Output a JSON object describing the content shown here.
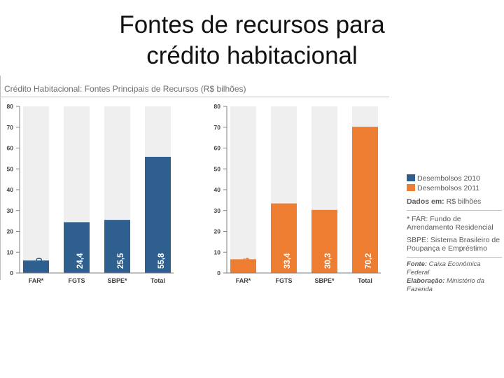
{
  "slide": {
    "title_line1": "Fontes de recursos para",
    "title_line2": "crédito habitacional"
  },
  "chart_data": [
    {
      "type": "bar",
      "title": "Crédito Habitacional: Fontes Principais de Recursos (R$ bilhões)",
      "series_name": "Desembolsos 2010",
      "color": "#2e5f8e",
      "categories": [
        "FAR*",
        "FGTS",
        "SBPE*",
        "Total"
      ],
      "values": [
        6.0,
        24.4,
        25.5,
        55.8
      ],
      "value_labels": [
        "6,0",
        "24,4",
        "25,5",
        "55,8"
      ],
      "ylim": [
        0,
        80
      ],
      "yticks": [
        0,
        10,
        20,
        30,
        40,
        50,
        60,
        70,
        80
      ]
    },
    {
      "type": "bar",
      "series_name": "Desembolsos 2011",
      "color": "#ed7d31",
      "categories": [
        "FAR*",
        "FGTS",
        "SBPE*",
        "Total"
      ],
      "values": [
        6.6,
        33.4,
        30.3,
        70.2
      ],
      "value_labels": [
        "6,6",
        "33,4",
        "30,3",
        "70,2"
      ],
      "ylim": [
        0,
        80
      ],
      "yticks": [
        0,
        10,
        20,
        30,
        40,
        50,
        60,
        70,
        80
      ]
    }
  ],
  "legend": {
    "items": [
      {
        "label": "Desembolsos 2010",
        "color": "#2e5f8e"
      },
      {
        "label": "Desembolsos 2011",
        "color": "#ed7d31"
      }
    ],
    "data_label": "Dados em:",
    "data_value": "R$ bilhões",
    "note_far": "* FAR: Fundo de Arrendamento Residencial",
    "note_sbpe": "SBPE: Sistema Brasileiro de Poupança e Empréstimo",
    "source_label": "Fonte:",
    "source_value": "Caixa Econômica Federal",
    "elab_label": "Elaboração:",
    "elab_value": "Ministério da Fazenda"
  }
}
